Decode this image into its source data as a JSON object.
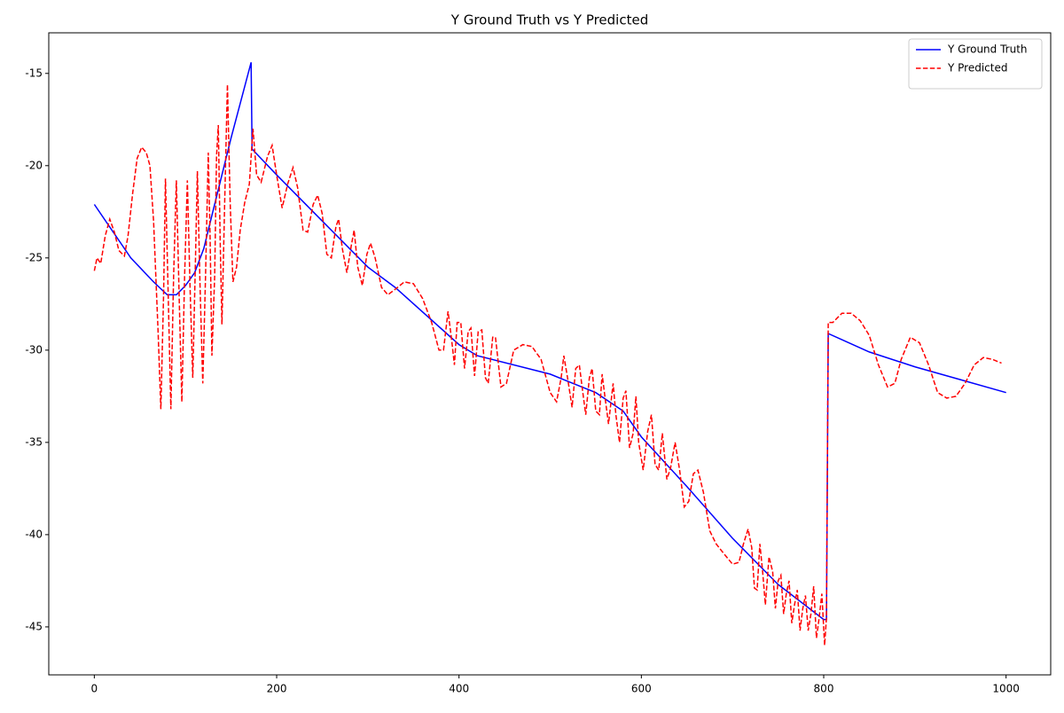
{
  "chart_data": {
    "type": "line",
    "title": "Y Ground Truth vs Y Predicted",
    "xlim": [
      -49.95,
      1048.95
    ],
    "ylim": [
      -47.6,
      -12.8
    ],
    "xticks": [
      0,
      200,
      400,
      600,
      800,
      1000
    ],
    "yticks": [
      -45,
      -40,
      -35,
      -30,
      -25,
      -20,
      -15
    ],
    "legend": "upper right",
    "series": [
      {
        "name": "Y Ground Truth",
        "color": "#0000ff",
        "dash": "solid",
        "x": [
          0,
          40,
          65,
          80,
          90,
          100,
          110,
          120,
          130,
          150,
          172,
          173,
          200,
          250,
          300,
          330,
          400,
          420,
          500,
          550,
          580,
          600,
          650,
          700,
          750,
          800,
          803,
          805,
          850,
          900,
          950,
          1000
        ],
        "values": [
          -22.1,
          -25,
          -26.3,
          -27.0,
          -27.0,
          -26.5,
          -25.8,
          -24.5,
          -22.5,
          -18.5,
          -14.4,
          -19.1,
          -20.5,
          -23.0,
          -25.5,
          -26.6,
          -29.7,
          -30.3,
          -31.3,
          -32.3,
          -33.3,
          -34.7,
          -37.4,
          -40.2,
          -42.7,
          -44.6,
          -44.6,
          -29.1,
          -30.1,
          -30.9,
          -31.6,
          -32.3
        ]
      },
      {
        "name": "Y Predicted",
        "color": "#ff0000",
        "dash": "dashed",
        "x": [
          0,
          3,
          7,
          12,
          17,
          22,
          27,
          33,
          37,
          42,
          47,
          52,
          57,
          61,
          65,
          70,
          73,
          76,
          78,
          81,
          84,
          87,
          90,
          93,
          96,
          99,
          102,
          105,
          108,
          111,
          113,
          116,
          119,
          122,
          125,
          127,
          129,
          132,
          134,
          136,
          138,
          140,
          143,
          146,
          149,
          152,
          156,
          160,
          165,
          170,
          174,
          178,
          183,
          190,
          195,
          200,
          206,
          212,
          218,
          223,
          229,
          234,
          240,
          245,
          250,
          255,
          260,
          265,
          268,
          272,
          277,
          282,
          285,
          289,
          294,
          299,
          303,
          308,
          315,
          322,
          330,
          340,
          350,
          360,
          370,
          378,
          383,
          388,
          392,
          395,
          398,
          402,
          406,
          410,
          413,
          417,
          421,
          425,
          429,
          432,
          437,
          440,
          446,
          452,
          460,
          470,
          480,
          490,
          500,
          507,
          512,
          515,
          519,
          524,
          528,
          532,
          535,
          539,
          543,
          546,
          550,
          554,
          557,
          560,
          564,
          569,
          572,
          576,
          580,
          583,
          587,
          591,
          594,
          597,
          602,
          607,
          611,
          615,
          619,
          623,
          628,
          632,
          637,
          642,
          647,
          652,
          657,
          662,
          668,
          675,
          682,
          690,
          700,
          707,
          712,
          717,
          721,
          724,
          727,
          730,
          733,
          736,
          740,
          744,
          747,
          750,
          753,
          756,
          759,
          762,
          765,
          768,
          771,
          774,
          777,
          780,
          783,
          786,
          789,
          792,
          795,
          798,
          801,
          803,
          805,
          810,
          820,
          830,
          840,
          850,
          860,
          870,
          878,
          885,
          895,
          905,
          915,
          925,
          935,
          945,
          955,
          965,
          975,
          985,
          995
        ],
        "values": [
          -25.7,
          -25,
          -25.3,
          -23.8,
          -22.9,
          -23.6,
          -24.6,
          -24.9,
          -23.8,
          -21.5,
          -19.6,
          -19,
          -19.3,
          -20.0,
          -23,
          -29,
          -33.2,
          -27,
          -20.7,
          -27,
          -33.2,
          -26,
          -20.8,
          -27,
          -32.8,
          -26,
          -20.8,
          -26.5,
          -31.5,
          -25,
          -20.3,
          -26.5,
          -31.8,
          -26,
          -19.3,
          -24,
          -30.3,
          -26,
          -19.5,
          -17.8,
          -24,
          -28.6,
          -22,
          -15.6,
          -22,
          -26.3,
          -25.5,
          -23.5,
          -22,
          -21,
          -18.0,
          -20.5,
          -20.9,
          -19.5,
          -18.9,
          -20.5,
          -22.3,
          -21.0,
          -20.1,
          -21.2,
          -23.5,
          -23.6,
          -22.1,
          -21.6,
          -22.6,
          -24.8,
          -25.0,
          -23.3,
          -22.9,
          -24.5,
          -25.8,
          -24.3,
          -23.5,
          -25.5,
          -26.5,
          -24.8,
          -24.2,
          -25.0,
          -26.6,
          -27.0,
          -26.7,
          -26.3,
          -26.4,
          -27.2,
          -28.5,
          -30.0,
          -30.0,
          -27.9,
          -29.5,
          -30.8,
          -28.5,
          -28.5,
          -31,
          -29,
          -28.8,
          -31.4,
          -29,
          -28.9,
          -31.5,
          -31.8,
          -29.3,
          -29.3,
          -32.0,
          -31.8,
          -30,
          -29.7,
          -29.8,
          -30.5,
          -32.3,
          -32.8,
          -31.5,
          -30.3,
          -31.5,
          -33.1,
          -31.0,
          -30.8,
          -32,
          -33.5,
          -31.5,
          -31,
          -33.3,
          -33.5,
          -31.3,
          -32.5,
          -34,
          -31.8,
          -33.5,
          -35,
          -32.6,
          -32.2,
          -35.3,
          -34.5,
          -32.5,
          -35,
          -36.5,
          -34.4,
          -33.5,
          -36.2,
          -36.5,
          -34.5,
          -37.0,
          -36.4,
          -35.0,
          -36.5,
          -38.5,
          -38.2,
          -36.7,
          -36.5,
          -37.7,
          -39.8,
          -40.5,
          -41.0,
          -41.6,
          -41.5,
          -40.5,
          -39.7,
          -40.7,
          -42.9,
          -43,
          -40.5,
          -42,
          -43.8,
          -41.2,
          -42,
          -44,
          -42.5,
          -42.2,
          -44.3,
          -43.2,
          -42.5,
          -44.8,
          -43.8,
          -43.0,
          -45.2,
          -44,
          -43.3,
          -45.2,
          -44.3,
          -42.8,
          -45.6,
          -44.5,
          -43.2,
          -46.0,
          -44.5,
          -28.5,
          -28.5,
          -28.0,
          -28.0,
          -28.4,
          -29.2,
          -30.8,
          -32.0,
          -31.8,
          -30.5,
          -29.3,
          -29.6,
          -30.8,
          -32.3,
          -32.6,
          -32.5,
          -31.8,
          -30.8,
          -30.4,
          -30.5,
          -30.7
        ]
      }
    ]
  }
}
